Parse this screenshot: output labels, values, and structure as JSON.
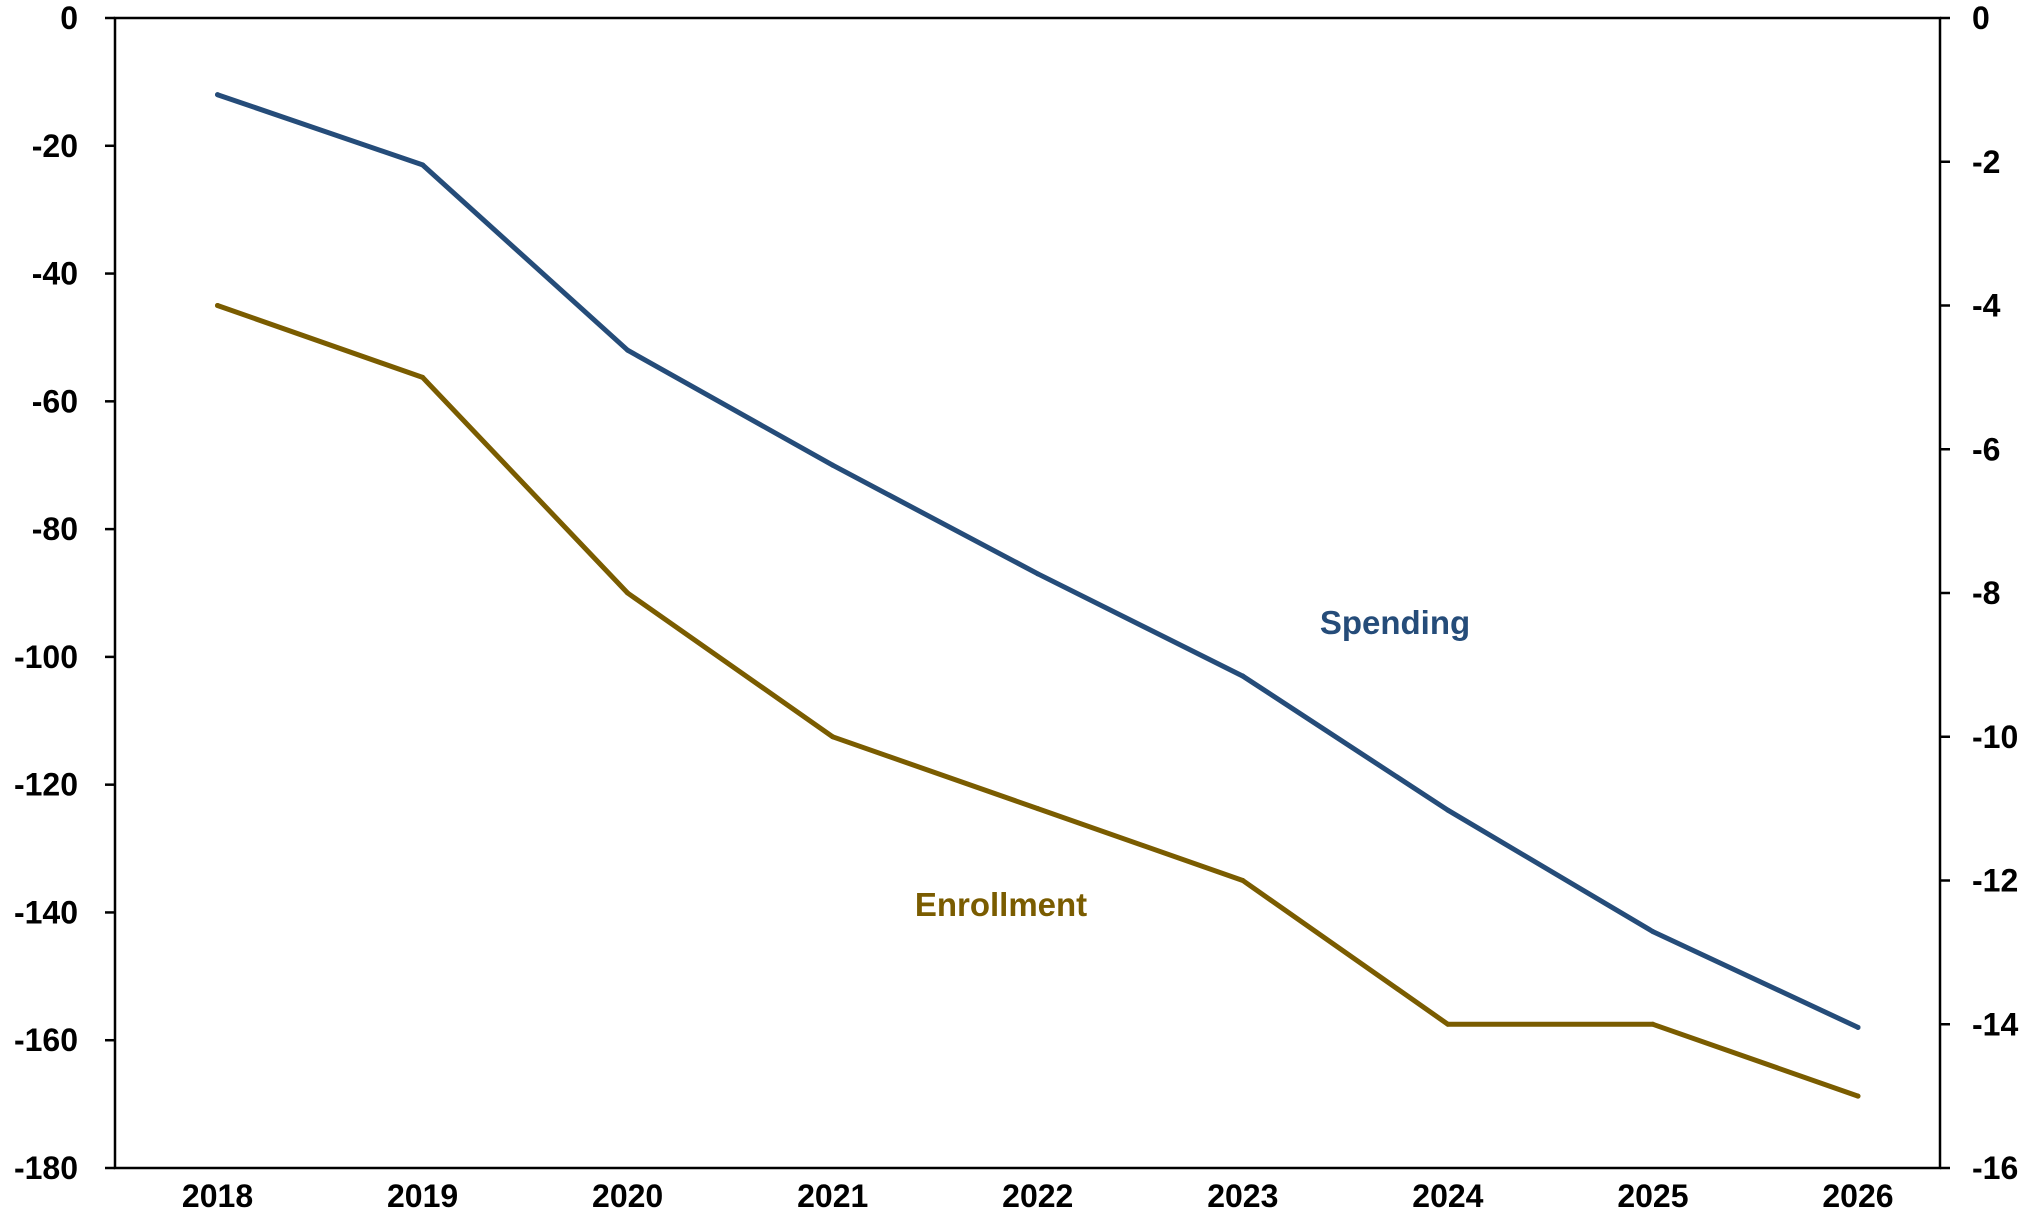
{
  "chart_data": {
    "type": "line",
    "title": "",
    "x": [
      "2018",
      "2019",
      "2020",
      "2021",
      "2022",
      "2023",
      "2024",
      "2025",
      "2026"
    ],
    "left_axis": {
      "ylim": [
        -180,
        0
      ],
      "ticks": [
        "0",
        "-20",
        "-40",
        "-60",
        "-80",
        "-100",
        "-120",
        "-140",
        "-160",
        "-180"
      ]
    },
    "right_axis": {
      "ylim": [
        -16,
        0
      ],
      "ticks": [
        "0",
        "-2",
        "-4",
        "-6",
        "-8",
        "-10",
        "-12",
        "-14",
        "-16"
      ]
    },
    "series": [
      {
        "name": "Spending",
        "axis": "left",
        "color": "#254C79",
        "values": [
          -12,
          -23,
          -52,
          -70,
          -87,
          -103,
          -124,
          -143,
          -158
        ]
      },
      {
        "name": "Enrollment",
        "axis": "right",
        "color": "#7A5C00",
        "values": [
          -4.0,
          -5.0,
          -8.0,
          -10.0,
          -11.0,
          -12.0,
          -14.0,
          -14.0,
          -15.0
        ]
      }
    ],
    "grid": false,
    "legend": "inline labels"
  }
}
